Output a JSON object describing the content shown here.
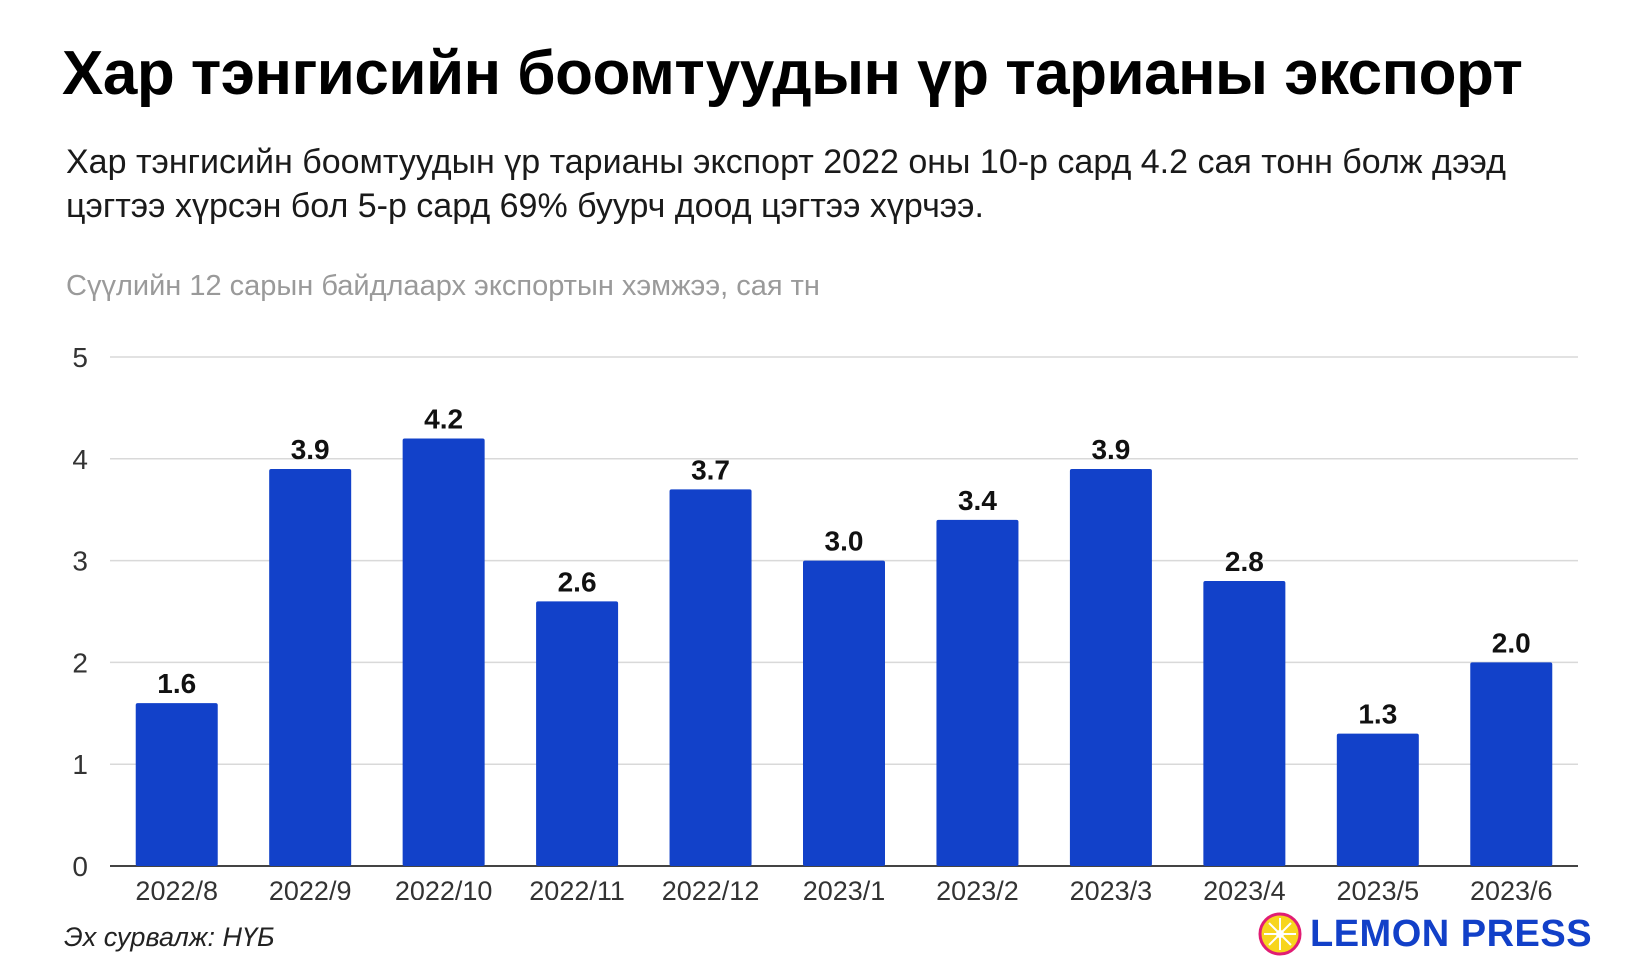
{
  "title": "Хар тэнгисийн боомтуудын үр тарианы экспорт",
  "subtitle": "Хар тэнгисийн боомтуудын үр тарианы экспорт 2022 оны 10-р сард 4.2 сая тонн болж дээд цэгтээ хүрсэн бол 5-р сард 69% буурч доод цэгтээ хүрчээ.",
  "source": "Эх сурвалж: НҮБ",
  "logo_text": "LEMON PRESS",
  "colors": {
    "bar": "#1241c9",
    "grid": "#d9d9d9",
    "axis_text": "#333333",
    "logo": "#1240c8",
    "lemon": "#f7d51d"
  },
  "chart_data": {
    "type": "bar",
    "ylabel": "Сүүлийн 12 сарын байдлаарх экспортын хэмжээ, сая тн",
    "categories": [
      "2022/8",
      "2022/9",
      "2022/10",
      "2022/11",
      "2022/12",
      "2023/1",
      "2023/2",
      "2023/3",
      "2023/4",
      "2023/5",
      "2023/6"
    ],
    "values": [
      1.6,
      3.9,
      4.2,
      2.6,
      3.7,
      3.0,
      3.4,
      3.9,
      2.8,
      1.3,
      2.0
    ],
    "value_labels": [
      "1.6",
      "3.9",
      "4.2",
      "2.6",
      "3.7",
      "3.0",
      "3.4",
      "3.9",
      "2.8",
      "1.3",
      "2.0"
    ],
    "ylim": [
      0,
      5
    ],
    "yticks": [
      0,
      1,
      2,
      3,
      4,
      5
    ],
    "grid": true,
    "legend": "none"
  }
}
